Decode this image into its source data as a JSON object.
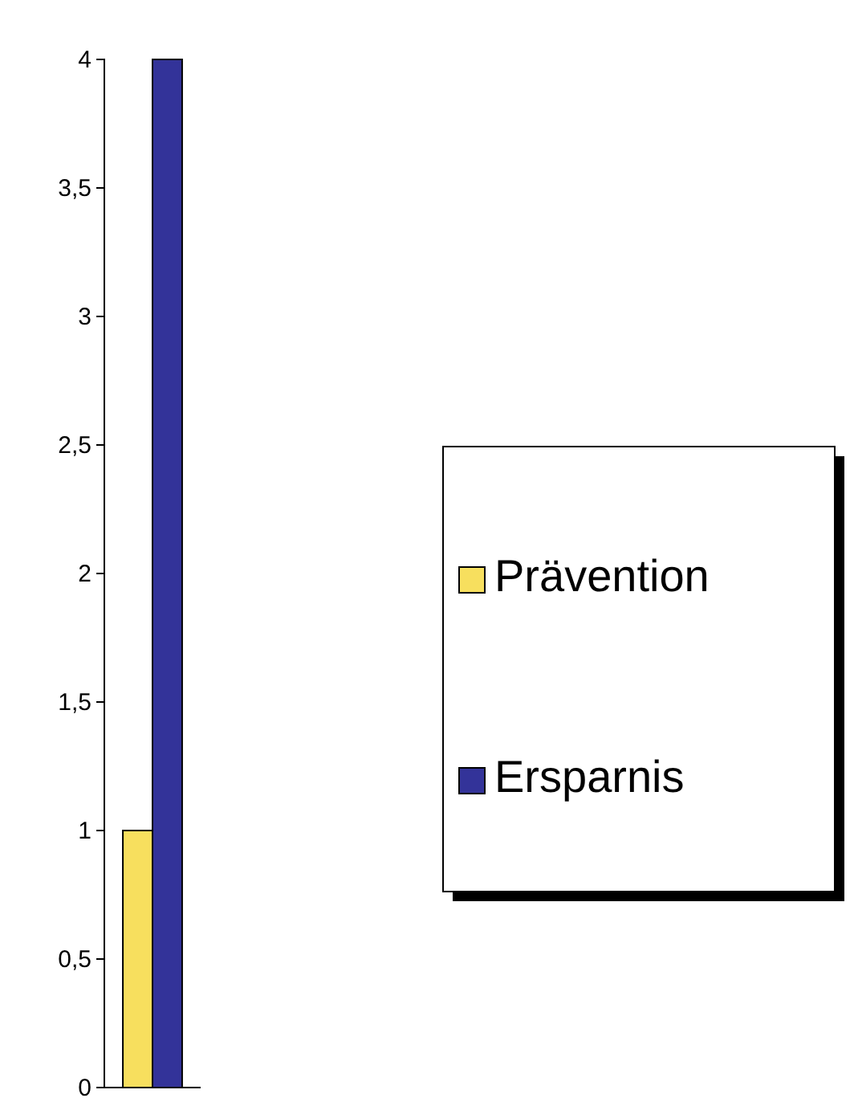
{
  "chart_data": {
    "type": "bar",
    "categories": [
      null
    ],
    "series": [
      {
        "name": "Prävention",
        "color": "#f7df5e",
        "values": [
          1
        ]
      },
      {
        "name": "Ersparnis",
        "color": "#333399",
        "values": [
          4
        ]
      }
    ],
    "ylim": [
      0,
      4
    ],
    "yticks": [
      0,
      {
        "value": 0.5,
        "label": "0,5"
      },
      1,
      {
        "value": 1.5,
        "label": "1,5"
      },
      2,
      {
        "value": 2.5,
        "label": "2,5"
      },
      3,
      {
        "value": 3.5,
        "label": "3,5"
      },
      4
    ],
    "legend": "right"
  }
}
